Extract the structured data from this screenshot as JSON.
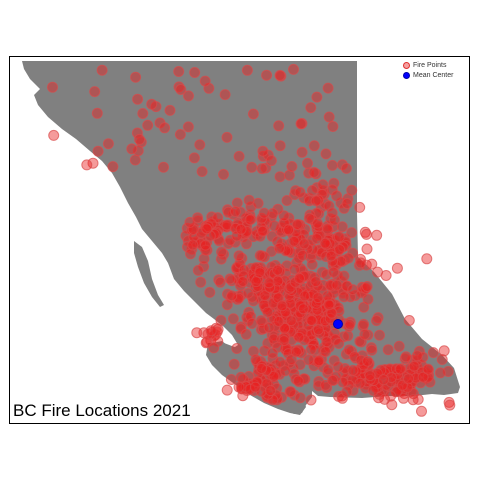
{
  "title": "BC Fire Locations 2021",
  "legend": {
    "items": [
      {
        "label": "Fire Points",
        "fill": "#f4a0a0",
        "stroke": "#e03030"
      },
      {
        "label": "Mean Center",
        "fill": "#0000ff",
        "stroke": "#0000aa"
      }
    ]
  },
  "colors": {
    "land": "#808080",
    "fire_fill": "#e8222288",
    "fire_stroke": "#d84a4a",
    "mean_center": "#0000ff",
    "background": "#ffffff"
  },
  "map_layers": [
    "province-landmass",
    "fire-points",
    "mean-center"
  ]
}
